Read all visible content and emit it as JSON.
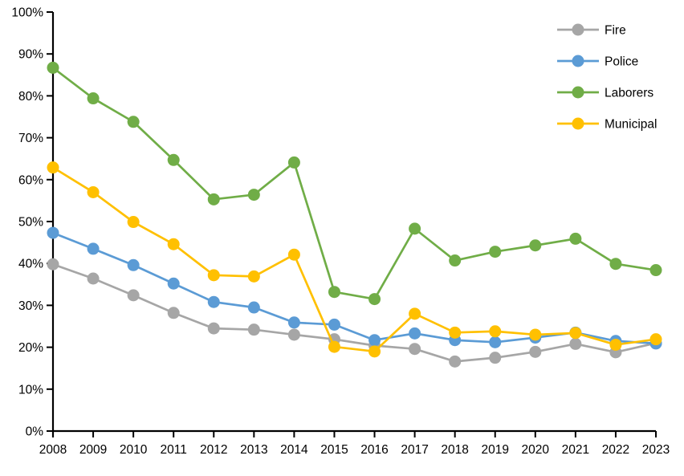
{
  "chart_data": {
    "type": "line",
    "title": "",
    "xlabel": "",
    "ylabel": "",
    "x": [
      "2008",
      "2009",
      "2010",
      "2011",
      "2012",
      "2013",
      "2014",
      "2015",
      "2016",
      "2017",
      "2018",
      "2019",
      "2020",
      "2021",
      "2022",
      "2023"
    ],
    "series": [
      {
        "name": "Fire",
        "color": "#A6A6A6",
        "values": [
          39.8,
          36.4,
          32.4,
          28.2,
          24.5,
          24.2,
          23.0,
          21.9,
          20.4,
          19.6,
          16.6,
          17.5,
          18.9,
          20.8,
          18.8,
          21.0
        ]
      },
      {
        "name": "Police",
        "color": "#5B9BD5",
        "values": [
          47.3,
          43.5,
          39.6,
          35.2,
          30.8,
          29.5,
          25.9,
          25.4,
          21.7,
          23.3,
          21.7,
          21.2,
          22.3,
          23.5,
          21.5,
          20.9
        ]
      },
      {
        "name": "Laborers",
        "color": "#70AD47",
        "values": [
          86.7,
          79.4,
          73.8,
          64.7,
          55.3,
          56.4,
          64.1,
          33.2,
          31.5,
          48.3,
          40.7,
          42.8,
          44.3,
          45.9,
          39.9,
          38.4
        ]
      },
      {
        "name": "Municipal",
        "color": "#FFC000",
        "values": [
          62.9,
          57.0,
          49.9,
          44.6,
          37.2,
          36.9,
          42.1,
          20.1,
          19.0,
          28.0,
          23.5,
          23.8,
          23.0,
          23.4,
          20.6,
          21.9
        ]
      }
    ],
    "ylim": [
      0,
      100
    ],
    "ytick_step": 10,
    "ytick_suffix": "%",
    "grid": false,
    "legend_position": "top-right",
    "axis_color": "#000000",
    "background": "#FFFFFF"
  }
}
